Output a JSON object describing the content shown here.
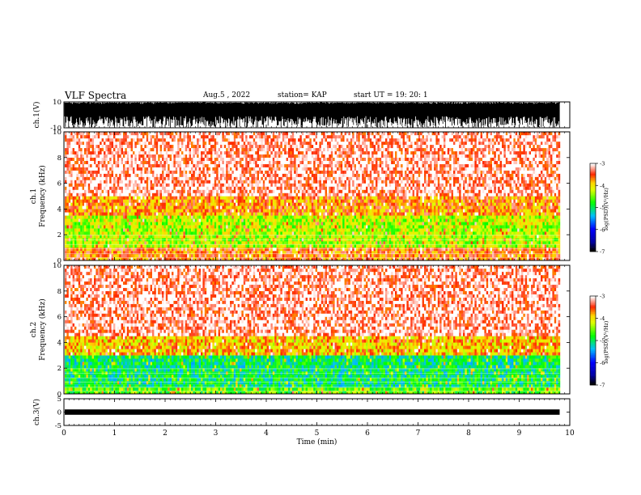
{
  "header": {
    "title": "VLF Spectra",
    "date": "Aug.5 , 2022",
    "station": "station= KAP",
    "start": "start UT = 19: 20: 1"
  },
  "colors": {
    "spectrum_low": "#0000ff",
    "spectrum_mid": "#00ff00",
    "spectrum_high": "#ff0000",
    "spectrum_peak": "#ffff00",
    "background": "#ffffff",
    "axis": "#000000"
  },
  "chart_data": [
    {
      "type": "line",
      "panel": "ch1-waveform",
      "ylabel": "ch.1(V)",
      "ylim": [
        -10,
        10
      ],
      "yticks": [
        "10",
        "-10"
      ],
      "xlim": [
        0,
        10
      ],
      "data_extent_min": 9.8,
      "grid": false
    },
    {
      "type": "heatmap",
      "panel": "ch1-spectrogram",
      "ylabel": "ch.1 Frequency (kHz)",
      "ylim": [
        0,
        10
      ],
      "yticks": [
        "0",
        "2",
        "4",
        "6",
        "8",
        "10"
      ],
      "xlim": [
        0,
        10
      ],
      "data_extent_min": 9.8,
      "colorbar": {
        "label": "log(PSD)(V²/Hz)",
        "ticks": [
          "-3",
          "-4",
          "-5",
          "-6",
          "-7"
        ],
        "range": [
          -7,
          -3
        ]
      },
      "bands": [
        {
          "from_khz": 0,
          "to_khz": 1,
          "level": -3.6
        },
        {
          "from_khz": 1,
          "to_khz": 3.3,
          "level": -4.3
        },
        {
          "from_khz": 3.3,
          "to_khz": 5,
          "level": -3.7
        },
        {
          "from_khz": 5,
          "to_khz": 10,
          "level": -3.2
        }
      ]
    },
    {
      "type": "heatmap",
      "panel": "ch2-spectrogram",
      "ylabel": "ch.2 Frequency (kHz)",
      "ylim": [
        0,
        10
      ],
      "yticks": [
        "0",
        "2",
        "4",
        "6",
        "8",
        "10"
      ],
      "xlim": [
        0,
        10
      ],
      "data_extent_min": 9.8,
      "colorbar": {
        "label": "log(PSD)(V²/Hz)",
        "ticks": [
          "-3",
          "-4",
          "-5",
          "-6",
          "-7"
        ],
        "range": [
          -7,
          -3
        ]
      },
      "bands": [
        {
          "from_khz": 0,
          "to_khz": 0.5,
          "level": -4.6
        },
        {
          "from_khz": 0.5,
          "to_khz": 3,
          "level": -5.0
        },
        {
          "from_khz": 3,
          "to_khz": 4.5,
          "level": -3.9
        },
        {
          "from_khz": 4.5,
          "to_khz": 10,
          "level": -3.2
        }
      ]
    },
    {
      "type": "line",
      "panel": "ch3-waveform",
      "ylabel": "ch.3(V)",
      "ylim": [
        -5,
        5
      ],
      "yticks": [
        "5",
        "0",
        "-5"
      ],
      "xlim": [
        0,
        10
      ],
      "xlabel": "Time (min)",
      "xticks": [
        "0",
        "1",
        "2",
        "3",
        "4",
        "5",
        "6",
        "7",
        "8",
        "9",
        "10"
      ],
      "data_extent_min": 9.8,
      "signal_band": [
        -1,
        1
      ],
      "grid": false
    }
  ]
}
